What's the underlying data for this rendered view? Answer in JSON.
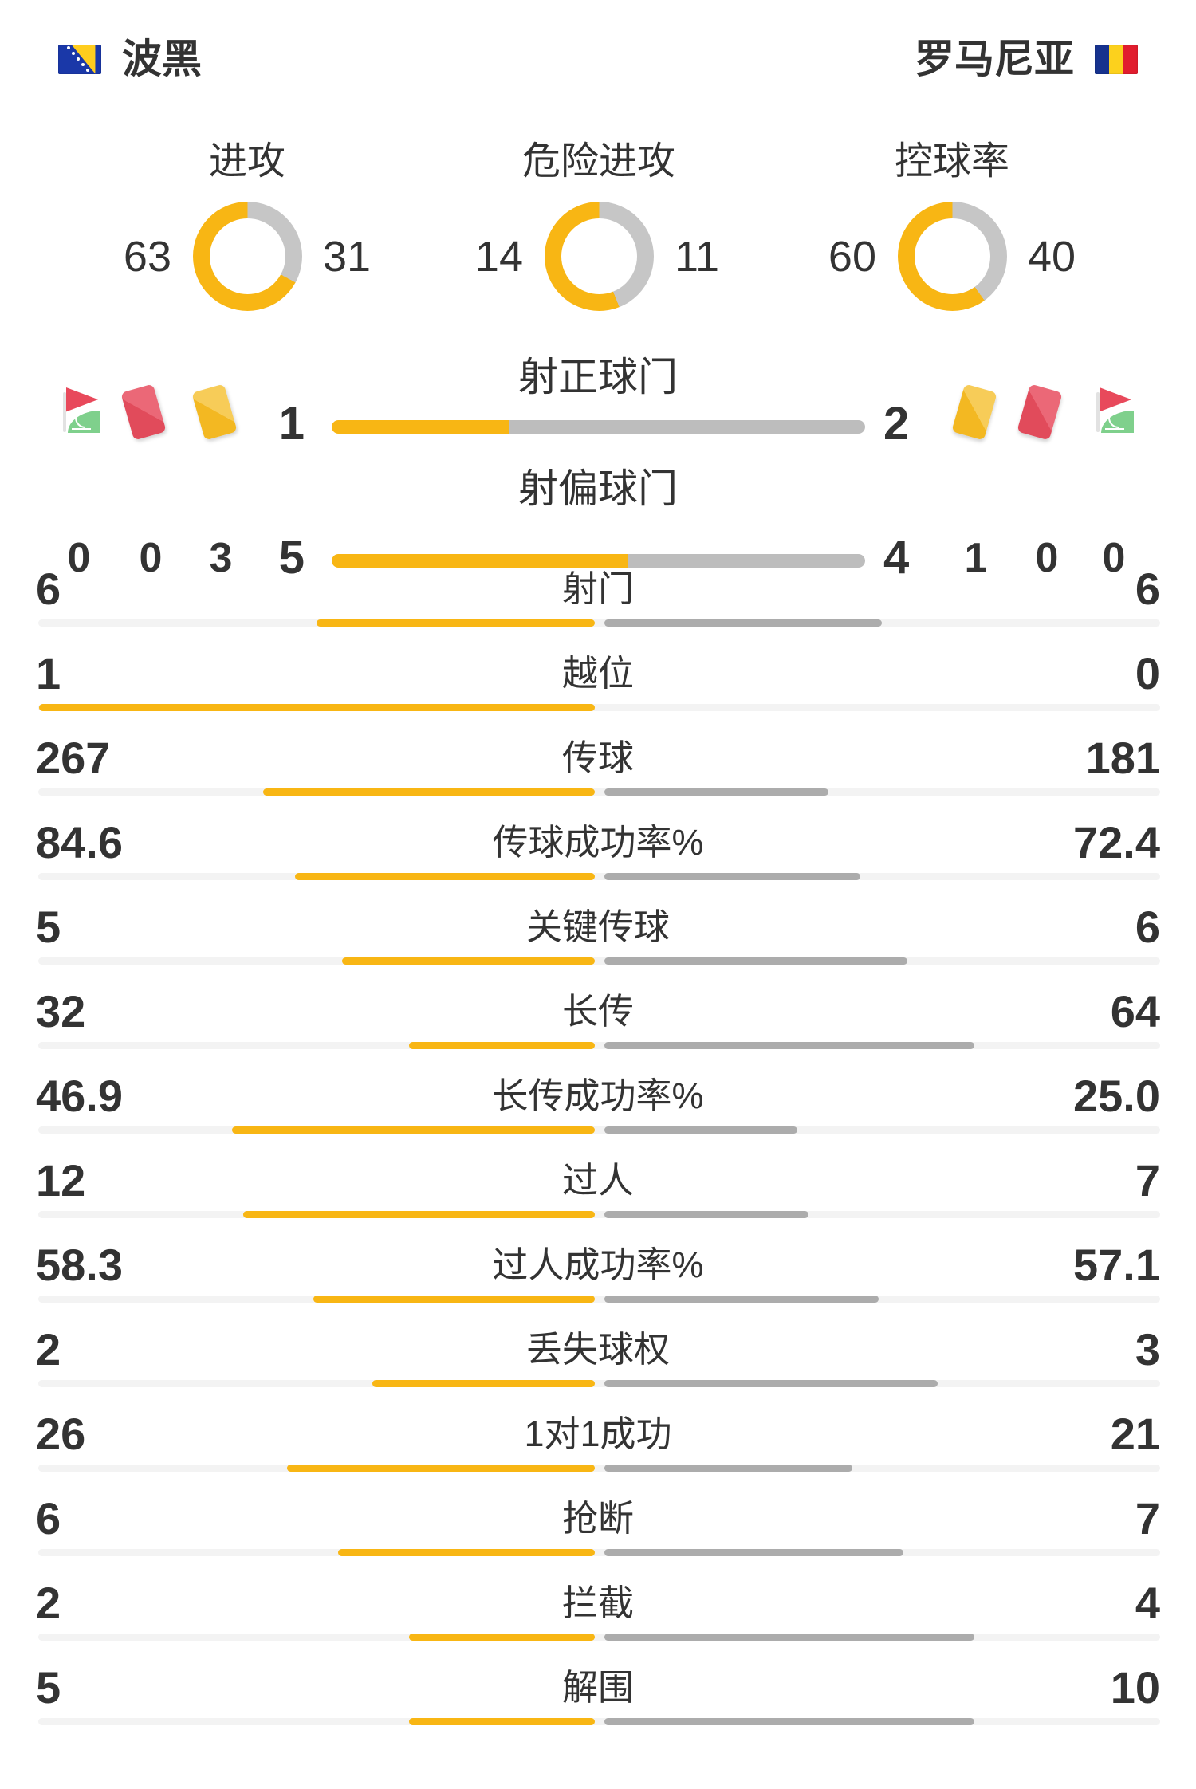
{
  "colors": {
    "accent_yellow": "#F8B614",
    "donut_gray": "#C6C6C6",
    "bar_gray": "#ACACAC",
    "mid_bar_gray": "#BDBDBD",
    "track_gray": "#F3F3F3",
    "text": "#333333",
    "card_red": "#E8495B",
    "card_yellow": "#F5BE2E",
    "flag_green": "#7FD08C"
  },
  "header": {
    "home_team": "波黑",
    "away_team": "罗马尼亚",
    "home_flag": "bosnia-flag",
    "away_flag": "romania-flag"
  },
  "donut_charts": [
    {
      "label": "进攻",
      "home": 63,
      "away": 31
    },
    {
      "label": "危险进攻",
      "home": 14,
      "away": 11
    },
    {
      "label": "控球率",
      "home": 60,
      "away": 40
    }
  ],
  "shot_bars": [
    {
      "label": "射正球门",
      "home": 1,
      "away": 2
    },
    {
      "label": "射偏球门",
      "home": 5,
      "away": 4
    }
  ],
  "cards_corners": {
    "home": [
      {
        "icon": "corner-flag",
        "count": 0
      },
      {
        "icon": "red-card",
        "count": 0
      },
      {
        "icon": "yellow-card",
        "count": 3
      }
    ],
    "away": [
      {
        "icon": "yellow-card",
        "count": 1
      },
      {
        "icon": "red-card",
        "count": 0
      },
      {
        "icon": "corner-flag",
        "count": 0
      }
    ]
  },
  "stat_rows": [
    {
      "label": "射门",
      "home": "6",
      "away": "6"
    },
    {
      "label": "越位",
      "home": "1",
      "away": "0"
    },
    {
      "label": "传球",
      "home": "267",
      "away": "181"
    },
    {
      "label": "传球成功率%",
      "home": "84.6",
      "away": "72.4"
    },
    {
      "label": "关键传球",
      "home": "5",
      "away": "6"
    },
    {
      "label": "长传",
      "home": "32",
      "away": "64"
    },
    {
      "label": "长传成功率%",
      "home": "46.9",
      "away": "25.0"
    },
    {
      "label": "过人",
      "home": "12",
      "away": "7"
    },
    {
      "label": "过人成功率%",
      "home": "58.3",
      "away": "57.1"
    },
    {
      "label": "丢失球权",
      "home": "2",
      "away": "3"
    },
    {
      "label": "1对1成功",
      "home": "26",
      "away": "21"
    },
    {
      "label": "抢断",
      "home": "6",
      "away": "7"
    },
    {
      "label": "拦截",
      "home": "2",
      "away": "4"
    },
    {
      "label": "解围",
      "home": "5",
      "away": "10"
    }
  ],
  "chart_data": [
    {
      "type": "pie",
      "title": "进攻",
      "labels": [
        "波黑",
        "罗马尼亚"
      ],
      "values": [
        63,
        31
      ],
      "colors": [
        "#F8B614",
        "#C6C6C6"
      ]
    },
    {
      "type": "pie",
      "title": "危险进攻",
      "labels": [
        "波黑",
        "罗马尼亚"
      ],
      "values": [
        14,
        11
      ],
      "colors": [
        "#F8B614",
        "#C6C6C6"
      ]
    },
    {
      "type": "pie",
      "title": "控球率",
      "labels": [
        "波黑",
        "罗马尼亚"
      ],
      "values": [
        60,
        40
      ],
      "colors": [
        "#F8B614",
        "#C6C6C6"
      ]
    },
    {
      "type": "bar",
      "title": "比赛统计对比",
      "categories": [
        "射正球门",
        "射偏球门",
        "射门",
        "越位",
        "传球",
        "传球成功率%",
        "关键传球",
        "长传",
        "长传成功率%",
        "过人",
        "过人成功率%",
        "丢失球权",
        "1对1成功",
        "抢断",
        "拦截",
        "解围",
        "角球",
        "红牌",
        "黄牌"
      ],
      "series": [
        {
          "name": "波黑",
          "values": [
            1,
            5,
            6,
            1,
            267,
            84.6,
            5,
            32,
            46.9,
            12,
            58.3,
            2,
            26,
            6,
            2,
            5,
            0,
            0,
            3
          ]
        },
        {
          "name": "罗马尼亚",
          "values": [
            2,
            4,
            6,
            0,
            181,
            72.4,
            6,
            64,
            25.0,
            7,
            57.1,
            3,
            21,
            7,
            4,
            10,
            0,
            0,
            1
          ]
        }
      ],
      "legend_position": "top",
      "grid": false
    }
  ]
}
